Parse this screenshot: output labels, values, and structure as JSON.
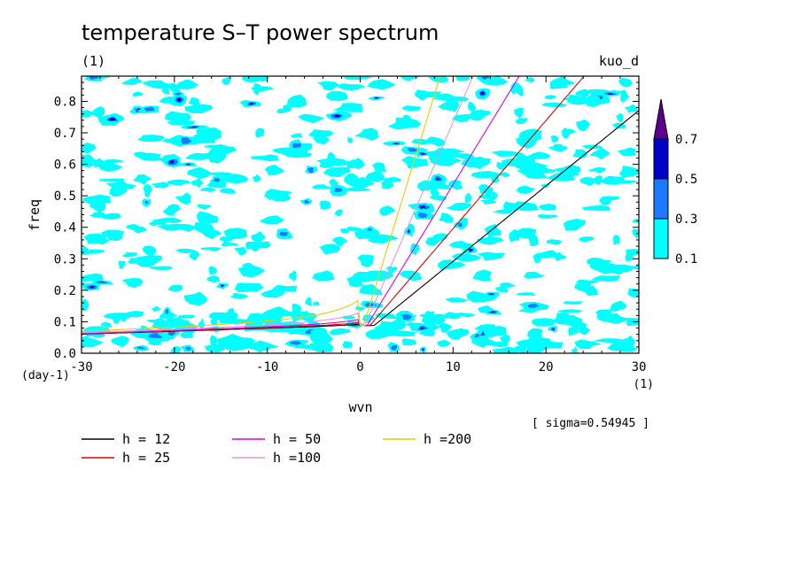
{
  "chart_data": {
    "type": "heatmap",
    "title": "temperature S–T power spectrum",
    "subtitle_left": "(1)",
    "subtitle_right": "kuo_d",
    "xlabel": "wvn",
    "ylabel": "freq",
    "x_unit": "(1)",
    "y_unit": "(day-1)",
    "xlim": [
      -30,
      30
    ],
    "ylim": [
      0,
      0.88
    ],
    "x_ticks": [
      "-30",
      "-20",
      "-10",
      "0",
      "10",
      "20",
      "30"
    ],
    "y_ticks": [
      "0.0",
      "0.1",
      "0.2",
      "0.3",
      "0.4",
      "0.5",
      "0.6",
      "0.7",
      "0.8"
    ],
    "colorbar": {
      "levels": [
        "0.1",
        "0.3",
        "0.5",
        "0.7"
      ],
      "colors": [
        "#00ffff",
        "#1e78ff",
        "#0000c8",
        "#5a008c"
      ]
    },
    "sigma_note": "[ sigma=0.54945 ]",
    "dispersion_curves": [
      {
        "legend": "h = 12",
        "h": 12,
        "color": "#000000"
      },
      {
        "legend": "h = 25",
        "h": 25,
        "color": "#e00000"
      },
      {
        "legend": "h = 50",
        "h": 50,
        "color": "#dd00dd"
      },
      {
        "legend": "h =100",
        "h": 100,
        "color": "#dd99dd"
      },
      {
        "legend": "h =200",
        "h": 200,
        "color": "#f0c800"
      }
    ]
  }
}
